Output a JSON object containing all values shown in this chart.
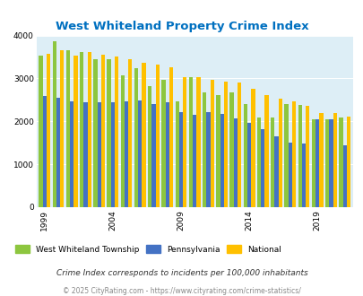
{
  "title": "West Whiteland Property Crime Index",
  "years": [
    1999,
    2000,
    2001,
    2002,
    2003,
    2004,
    2005,
    2006,
    2007,
    2008,
    2009,
    2010,
    2011,
    2012,
    2013,
    2014,
    2015,
    2016,
    2017,
    2018,
    2019,
    2020,
    2021
  ],
  "west_whiteland": [
    3530,
    3870,
    3650,
    3620,
    3450,
    3440,
    3080,
    3240,
    2820,
    2960,
    2470,
    3030,
    2680,
    2620,
    2670,
    2400,
    2100,
    2080,
    2400,
    2390,
    2050,
    2040,
    2100
  ],
  "pennsylvania": [
    2590,
    2560,
    2460,
    2450,
    2450,
    2450,
    2470,
    2490,
    2400,
    2450,
    2220,
    2160,
    2220,
    2170,
    2060,
    1960,
    1820,
    1660,
    1510,
    1490,
    2040,
    2040,
    1440
  ],
  "national": [
    3570,
    3660,
    3530,
    3610,
    3560,
    3520,
    3450,
    3370,
    3330,
    3250,
    3040,
    3030,
    2970,
    2930,
    2900,
    2750,
    2620,
    2520,
    2470,
    2370,
    2200,
    2200,
    2110
  ],
  "color_green": "#8dc63f",
  "color_blue": "#4472c4",
  "color_orange": "#ffc000",
  "bg_color": "#ddeef6",
  "title_color": "#0070c0",
  "ylim": [
    0,
    4000
  ],
  "yticks": [
    0,
    1000,
    2000,
    3000,
    4000
  ],
  "legend_labels": [
    "West Whiteland Township",
    "Pennsylvania",
    "National"
  ],
  "footnote1": "Crime Index corresponds to incidents per 100,000 inhabitants",
  "footnote2": "© 2025 CityRating.com - https://www.cityrating.com/crime-statistics/",
  "xtick_year_indices": [
    0,
    5,
    10,
    15,
    20
  ],
  "xtick_labels": [
    "1999",
    "2004",
    "2009",
    "2014",
    "2019"
  ]
}
